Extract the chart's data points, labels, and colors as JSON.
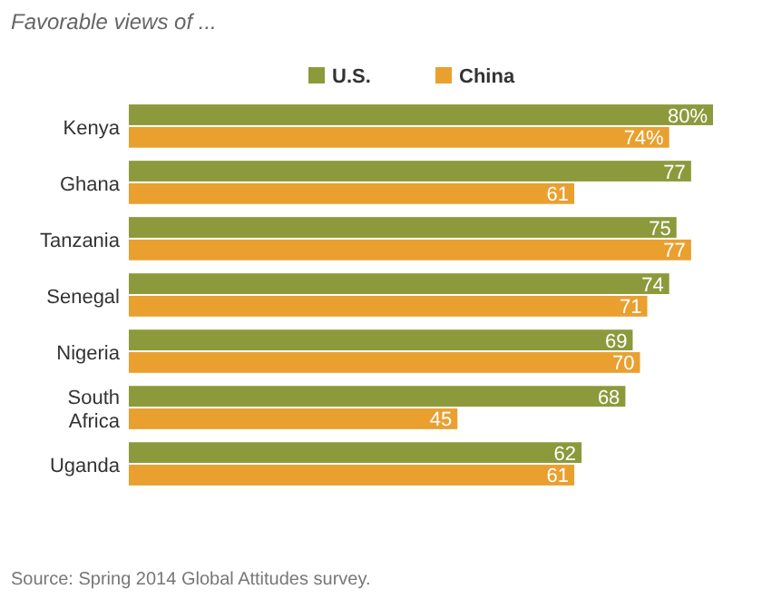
{
  "chart_data": {
    "type": "bar",
    "orientation": "horizontal",
    "title": "Favorable views of ...",
    "categories": [
      "Kenya",
      "Ghana",
      "Tanzania",
      "Senegal",
      "Nigeria",
      "South Africa",
      "Uganda"
    ],
    "series": [
      {
        "name": "U.S.",
        "color": "#8c9a3c",
        "values": [
          80,
          77,
          75,
          74,
          69,
          68,
          62
        ],
        "value_labels": [
          "80%",
          "77",
          "75",
          "74",
          "69",
          "68",
          "62"
        ]
      },
      {
        "name": "China",
        "color": "#e9a02f",
        "values": [
          74,
          61,
          77,
          71,
          70,
          45,
          61
        ],
        "value_labels": [
          "74%",
          "61",
          "77",
          "71",
          "70",
          "45",
          "61"
        ]
      }
    ],
    "legend": "top",
    "annotations": [
      "Source: Spring 2014 Global Attitudes survey."
    ]
  }
}
